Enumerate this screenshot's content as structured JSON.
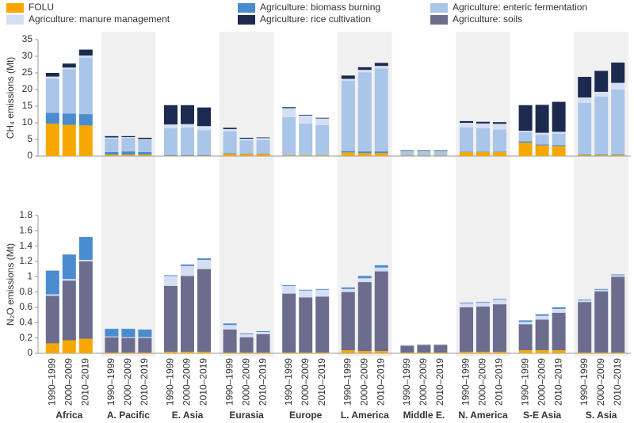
{
  "chart_data": [
    {
      "type": "stacked-bar",
      "ylabel": "CH₄ emissions (Mt)",
      "ylim": [
        0,
        35
      ],
      "yticks": [
        0,
        5,
        10,
        15,
        20,
        25,
        30,
        35
      ],
      "series": [
        {
          "name": "FOLU",
          "color": "#f6a800",
          "values": [
            [
              9.7,
              9.4,
              9.2
            ],
            [
              0.4,
              0.4,
              0.4
            ],
            [
              0.1,
              0.1,
              0.1
            ],
            [
              0.7,
              0.6,
              0.6
            ],
            [
              0.2,
              0.2,
              0.2
            ],
            [
              1.1,
              0.9,
              0.9
            ],
            [
              0.1,
              0.1,
              0.1
            ],
            [
              1.2,
              1.2,
              1.2
            ],
            [
              4.0,
              3.2,
              3.0
            ],
            [
              0.3,
              0.3,
              0.3
            ]
          ]
        },
        {
          "name": "Agriculture: biomass burning",
          "color": "#4a8ccf",
          "values": [
            [
              3.3,
              3.4,
              3.4
            ],
            [
              0.8,
              1.0,
              0.8
            ],
            [
              0.2,
              0.2,
              0.2
            ],
            [
              0.2,
              0.1,
              0.1
            ],
            [
              0.1,
              0.1,
              0.1
            ],
            [
              0.4,
              0.5,
              0.5
            ],
            [
              0.1,
              0.1,
              0.1
            ],
            [
              0.1,
              0.1,
              0.1
            ],
            [
              0.4,
              0.3,
              0.3
            ],
            [
              0.2,
              0.2,
              0.2
            ]
          ]
        },
        {
          "name": "Agriculture: enteric fermentation",
          "color": "#a9c5e9",
          "values": [
            [
              10.3,
              13.3,
              17.0
            ],
            [
              4.1,
              4.0,
              3.6
            ],
            [
              8.1,
              8.3,
              7.5
            ],
            [
              6.5,
              4.0,
              4.1
            ],
            [
              11.4,
              9.5,
              9.0
            ],
            [
              21.1,
              23.8,
              24.9
            ],
            [
              1.1,
              1.1,
              1.1
            ],
            [
              7.3,
              7.1,
              6.7
            ],
            [
              2.8,
              2.9,
              3.4
            ],
            [
              15.5,
              17.4,
              19.5
            ]
          ]
        },
        {
          "name": "Agriculture: manure management",
          "color": "#d5def2",
          "values": [
            [
              0.6,
              0.5,
              0.6
            ],
            [
              0.3,
              0.3,
              0.3
            ],
            [
              1.1,
              1.0,
              1.2
            ],
            [
              0.7,
              0.5,
              0.6
            ],
            [
              2.7,
              2.4,
              2.0
            ],
            [
              0.6,
              0.7,
              0.8
            ],
            [
              0.2,
              0.2,
              0.2
            ],
            [
              1.4,
              1.4,
              1.7
            ],
            [
              0.4,
              0.6,
              0.6
            ],
            [
              1.6,
              1.4,
              2.0
            ]
          ]
        },
        {
          "name": "Agriculture: rice cultivation",
          "color": "#1c2a4f",
          "values": [
            [
              1.1,
              1.2,
              1.8
            ],
            [
              0.4,
              0.3,
              0.4
            ],
            [
              5.8,
              5.7,
              5.6
            ],
            [
              0.4,
              0.3,
              0.2
            ],
            [
              0.3,
              0.2,
              0.2
            ],
            [
              1.0,
              0.8,
              0.9
            ],
            [
              0.2,
              0.2,
              0.2
            ],
            [
              0.5,
              0.5,
              0.5
            ],
            [
              7.7,
              8.4,
              9.0
            ],
            [
              6.2,
              6.3,
              6.1
            ]
          ]
        }
      ]
    },
    {
      "type": "stacked-bar",
      "ylabel": "N₂O emissions (Mt)",
      "ylim": [
        0,
        1.8
      ],
      "yticks": [
        0,
        0.2,
        0.4,
        0.6,
        0.8,
        1,
        1.2,
        1.4,
        1.6,
        1.8
      ],
      "groups": [
        "Africa",
        "A. Pacific",
        "E. Asia",
        "Eurasia",
        "Europe",
        "L. America",
        "Middle E.",
        "N. America",
        "S-E Asia",
        "S. Asia"
      ],
      "categories": [
        "1990–1999",
        "2000–2009",
        "2010–2019"
      ],
      "series": [
        {
          "name": "FOLU",
          "color": "#f6a800",
          "values": [
            [
              0.13,
              0.17,
              0.19
            ],
            [
              0.01,
              0.01,
              0.01
            ],
            [
              0.02,
              0.02,
              0.02
            ],
            [
              0.01,
              0.01,
              0.01
            ],
            [
              0.01,
              0.01,
              0.01
            ],
            [
              0.04,
              0.03,
              0.03
            ],
            [
              0.01,
              0.01,
              0.01
            ],
            [
              0.02,
              0.02,
              0.02
            ],
            [
              0.04,
              0.04,
              0.04
            ],
            [
              0.01,
              0.01,
              0.01
            ]
          ]
        },
        {
          "name": "Agriculture: soils",
          "color": "#6b6c8e",
          "values": [
            [
              0.62,
              0.78,
              1.01
            ],
            [
              0.2,
              0.19,
              0.19
            ],
            [
              0.86,
              0.99,
              1.08
            ],
            [
              0.3,
              0.2,
              0.24
            ],
            [
              0.77,
              0.72,
              0.73
            ],
            [
              0.76,
              0.9,
              1.04
            ],
            [
              0.09,
              0.1,
              0.1
            ],
            [
              0.58,
              0.59,
              0.62
            ],
            [
              0.34,
              0.4,
              0.49
            ],
            [
              0.66,
              0.8,
              0.99
            ]
          ]
        },
        {
          "name": "Agriculture: manure management",
          "color": "#d5def2",
          "values": [
            [
              0.02,
              0.02,
              0.02
            ],
            [
              0.01,
              0.01,
              0.01
            ],
            [
              0.13,
              0.13,
              0.12
            ],
            [
              0.06,
              0.04,
              0.03
            ],
            [
              0.1,
              0.09,
              0.09
            ],
            [
              0.04,
              0.05,
              0.05
            ],
            [
              0.01,
              0.01,
              0.01
            ],
            [
              0.05,
              0.05,
              0.06
            ],
            [
              0.03,
              0.05,
              0.05
            ],
            [
              0.02,
              0.02,
              0.02
            ]
          ]
        },
        {
          "name": "Agriculture: biomass burning",
          "color": "#4a8ccf",
          "values": [
            [
              0.31,
              0.32,
              0.3
            ],
            [
              0.1,
              0.11,
              0.1
            ],
            [
              0.01,
              0.02,
              0.02
            ],
            [
              0.02,
              0.01,
              0.01
            ],
            [
              0.01,
              0.01,
              0.01
            ],
            [
              0.02,
              0.03,
              0.03
            ],
            [
              0,
              0,
              0
            ],
            [
              0.01,
              0.01,
              0.01
            ],
            [
              0.02,
              0.02,
              0.02
            ],
            [
              0.01,
              0.01,
              0.01
            ]
          ]
        }
      ]
    }
  ]
}
